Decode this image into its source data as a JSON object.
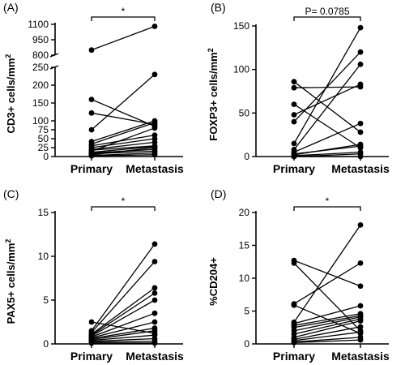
{
  "chart_data": [
    {
      "type": "line",
      "panel_label": "(A)",
      "ylabel": "CD3+ cells/mm2",
      "categories": [
        "Primary",
        "Metastasis"
      ],
      "y_axis": {
        "broken": true,
        "segments": [
          {
            "range": [
              0,
              250
            ],
            "ticks": [
              0,
              25,
              50,
              75,
              100,
              150,
              200,
              250
            ]
          },
          {
            "range": [
              800,
              1100
            ],
            "ticks": [
              800,
              950,
              1100
            ]
          }
        ]
      },
      "significance": "*",
      "pairs": [
        {
          "primary": 850,
          "metastasis": 1080
        },
        {
          "primary": 160,
          "metastasis": 85
        },
        {
          "primary": 122,
          "metastasis": 90
        },
        {
          "primary": 75,
          "metastasis": 230
        },
        {
          "primary": 42,
          "metastasis": 100
        },
        {
          "primary": 35,
          "metastasis": 95
        },
        {
          "primary": 30,
          "metastasis": 60
        },
        {
          "primary": 25,
          "metastasis": 50
        },
        {
          "primary": 20,
          "metastasis": 40
        },
        {
          "primary": 18,
          "metastasis": 30
        },
        {
          "primary": 15,
          "metastasis": 80
        },
        {
          "primary": 12,
          "metastasis": 28
        },
        {
          "primary": 10,
          "metastasis": 20
        },
        {
          "primary": 8,
          "metastasis": 15
        },
        {
          "primary": 5,
          "metastasis": 25
        },
        {
          "primary": 3,
          "metastasis": 10
        },
        {
          "primary": 2,
          "metastasis": 5
        }
      ]
    },
    {
      "type": "line",
      "panel_label": "(B)",
      "ylabel": "FOXP3+ cells/mm2",
      "categories": [
        "Primary",
        "Metastasis"
      ],
      "y_axis": {
        "range": [
          0,
          150
        ],
        "ticks": [
          0,
          50,
          100,
          150
        ]
      },
      "significance": "P= 0.0785",
      "pairs": [
        {
          "primary": 86,
          "metastasis": 28
        },
        {
          "primary": 79,
          "metastasis": 80
        },
        {
          "primary": 60,
          "metastasis": 10
        },
        {
          "primary": 48,
          "metastasis": 83
        },
        {
          "primary": 40,
          "metastasis": 120
        },
        {
          "primary": 15,
          "metastasis": 148
        },
        {
          "primary": 8,
          "metastasis": 106
        },
        {
          "primary": 5,
          "metastasis": 38
        },
        {
          "primary": 3,
          "metastasis": 12
        },
        {
          "primary": 2,
          "metastasis": 14
        },
        {
          "primary": 1,
          "metastasis": 5
        },
        {
          "primary": 0,
          "metastasis": 3
        },
        {
          "primary": 0,
          "metastasis": 0
        }
      ]
    },
    {
      "type": "line",
      "panel_label": "(C)",
      "ylabel": "PAX5+ cells/mm2",
      "categories": [
        "Primary",
        "Metastasis"
      ],
      "y_axis": {
        "range": [
          0,
          15
        ],
        "ticks": [
          0,
          5,
          10,
          15
        ]
      },
      "significance": "*",
      "pairs": [
        {
          "primary": 2.5,
          "metastasis": 1.2
        },
        {
          "primary": 1.5,
          "metastasis": 11.4
        },
        {
          "primary": 1.3,
          "metastasis": 9.4
        },
        {
          "primary": 1.1,
          "metastasis": 6.4
        },
        {
          "primary": 1.0,
          "metastasis": 5.8
        },
        {
          "primary": 0.9,
          "metastasis": 5.0
        },
        {
          "primary": 0.8,
          "metastasis": 3.5
        },
        {
          "primary": 0.7,
          "metastasis": 2.5
        },
        {
          "primary": 0.6,
          "metastasis": 1.8
        },
        {
          "primary": 0.5,
          "metastasis": 1.5
        },
        {
          "primary": 0.4,
          "metastasis": 1.0
        },
        {
          "primary": 0.3,
          "metastasis": 0.6
        },
        {
          "primary": 0.2,
          "metastasis": 0.3
        },
        {
          "primary": 0.1,
          "metastasis": 0.1
        }
      ]
    },
    {
      "type": "line",
      "panel_label": "(D)",
      "ylabel": "%CD204+",
      "categories": [
        "Primary",
        "Metastasis"
      ],
      "y_axis": {
        "range": [
          0,
          20
        ],
        "ticks": [
          0,
          5,
          10,
          15,
          20
        ]
      },
      "significance": "*",
      "pairs": [
        {
          "primary": 12.7,
          "metastasis": 8.8
        },
        {
          "primary": 12.3,
          "metastasis": 2.0
        },
        {
          "primary": 6.1,
          "metastasis": 12.3
        },
        {
          "primary": 5.9,
          "metastasis": 1.6
        },
        {
          "primary": 3.3,
          "metastasis": 18.1
        },
        {
          "primary": 3.1,
          "metastasis": 5.8
        },
        {
          "primary": 2.8,
          "metastasis": 4.6
        },
        {
          "primary": 2.5,
          "metastasis": 4.3
        },
        {
          "primary": 2.0,
          "metastasis": 4.1
        },
        {
          "primary": 1.5,
          "metastasis": 3.8
        },
        {
          "primary": 1.0,
          "metastasis": 3.5
        },
        {
          "primary": 0.7,
          "metastasis": 2.6
        },
        {
          "primary": 0.5,
          "metastasis": 1.8
        },
        {
          "primary": 0.3,
          "metastasis": 1.0
        },
        {
          "primary": 0.2,
          "metastasis": 0.6
        }
      ]
    }
  ]
}
